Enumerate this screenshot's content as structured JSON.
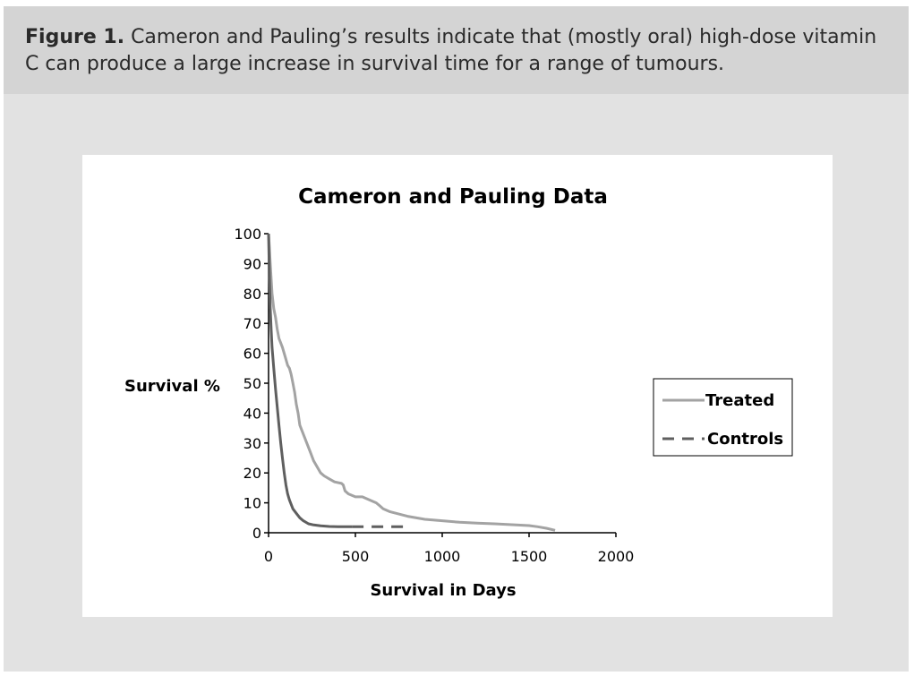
{
  "caption": {
    "label": "Figure 1.",
    "text": " Cameron and Pauling’s results indicate that (mostly oral) high-dose vitamin C can produce a large increase in survival time for a range of tumours."
  },
  "colors": {
    "treated": "#a3a3a3",
    "controls": "#5f5f5f",
    "axis": "#000000",
    "panel_background": "#e2e2e2",
    "caption_background": "#d4d4d4"
  },
  "chart_data": {
    "type": "line",
    "title": "Cameron and Pauling Data",
    "xlabel": "Survival in Days",
    "ylabel": "Survival %",
    "xlim": [
      0,
      2000
    ],
    "ylim": [
      0,
      100
    ],
    "xticks": [
      0,
      500,
      1000,
      1500,
      2000
    ],
    "yticks": [
      0,
      10,
      20,
      30,
      40,
      50,
      60,
      70,
      80,
      90,
      100
    ],
    "grid": false,
    "legend_position": "right",
    "series": [
      {
        "name": "Treated",
        "style": "solid",
        "x": [
          0,
          5,
          10,
          20,
          30,
          40,
          50,
          60,
          80,
          100,
          110,
          120,
          130,
          140,
          150,
          160,
          170,
          180,
          200,
          220,
          240,
          260,
          280,
          300,
          320,
          350,
          380,
          420,
          430,
          440,
          460,
          500,
          540,
          580,
          620,
          640,
          660,
          700,
          800,
          900,
          1000,
          1100,
          1200,
          1300,
          1400,
          1500,
          1550,
          1600,
          1650
        ],
        "y": [
          100,
          95,
          90,
          80,
          75,
          72,
          68,
          65,
          62,
          58,
          56,
          55,
          53,
          50,
          47,
          43,
          40,
          36,
          33,
          30,
          27,
          24,
          22,
          20,
          19,
          18,
          17,
          16.5,
          16,
          14,
          13,
          12,
          12,
          11,
          10,
          9,
          8,
          7,
          5.5,
          4.5,
          4,
          3.5,
          3.2,
          3,
          2.7,
          2.4,
          2,
          1.5,
          0.8
        ]
      },
      {
        "name": "Controls",
        "style": "solid-then-dashed",
        "dash_from_x": 480,
        "x": [
          0,
          5,
          10,
          15,
          20,
          30,
          40,
          50,
          60,
          70,
          80,
          90,
          100,
          110,
          120,
          140,
          160,
          180,
          200,
          230,
          260,
          300,
          350,
          400,
          450,
          480,
          820
        ],
        "y": [
          100,
          85,
          75,
          68,
          62,
          55,
          48,
          42,
          36,
          30,
          25,
          20,
          16,
          13,
          11,
          8,
          6.5,
          5,
          4,
          3,
          2.6,
          2.3,
          2.1,
          2,
          2,
          2,
          2
        ]
      }
    ]
  }
}
